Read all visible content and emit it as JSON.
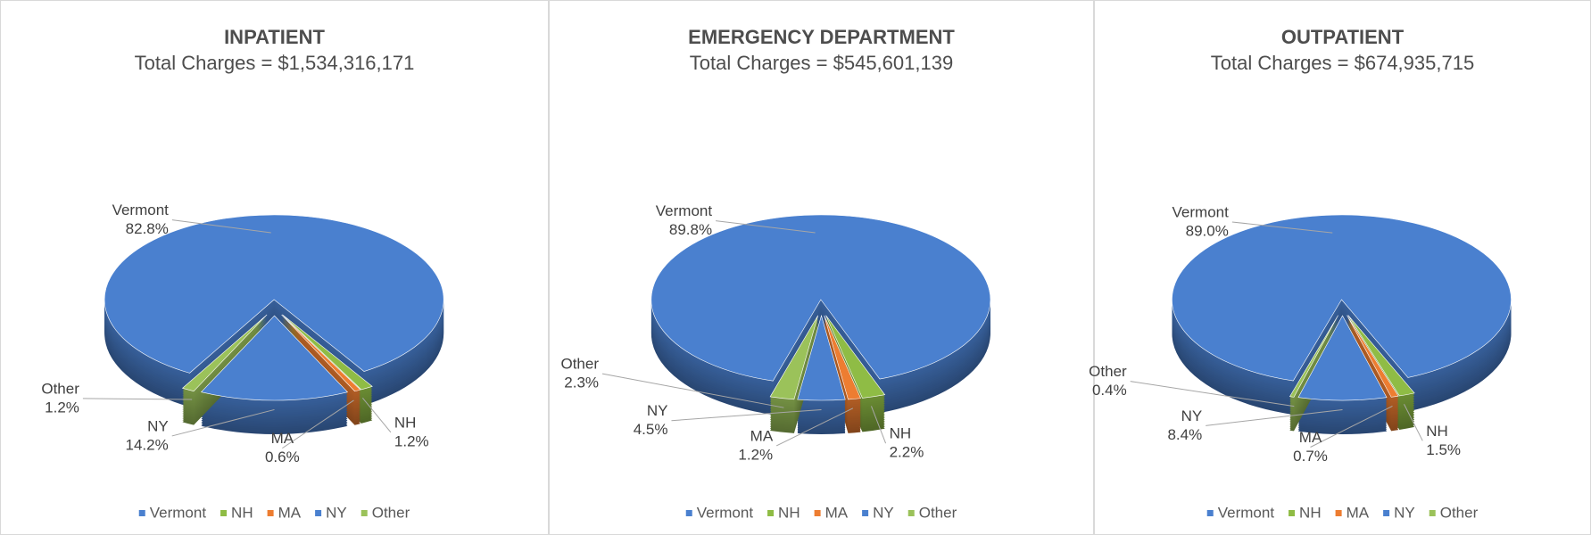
{
  "chart_data": [
    {
      "type": "pie",
      "title": "INPATIENT",
      "subtitle": "Total Charges = $1,534,316,171",
      "categories": [
        "Vermont",
        "NH",
        "MA",
        "NY",
        "Other"
      ],
      "values": [
        82.8,
        1.2,
        0.6,
        14.2,
        1.2
      ],
      "value_labels": [
        "82.8%",
        "1.2%",
        "0.6%",
        "14.2%",
        "1.2%"
      ],
      "colors": [
        "#4a80cf",
        "#8fbc45",
        "#ed7d31",
        "#4a80cf",
        "#9bc25a"
      ]
    },
    {
      "type": "pie",
      "title": "EMERGENCY DEPARTMENT",
      "subtitle": "Total Charges = $545,601,139",
      "categories": [
        "Vermont",
        "NH",
        "MA",
        "NY",
        "Other"
      ],
      "values": [
        89.8,
        2.2,
        1.2,
        4.5,
        2.3
      ],
      "value_labels": [
        "89.8%",
        "2.2%",
        "1.2%",
        "4.5%",
        "2.3%"
      ],
      "colors": [
        "#4a80cf",
        "#8fbc45",
        "#ed7d31",
        "#4a80cf",
        "#9bc25a"
      ]
    },
    {
      "type": "pie",
      "title": "OUTPATIENT",
      "subtitle": "Total Charges = $674,935,715",
      "categories": [
        "Vermont",
        "NH",
        "MA",
        "NY",
        "Other"
      ],
      "values": [
        89.0,
        1.5,
        0.7,
        8.4,
        0.4
      ],
      "value_labels": [
        "89.0%",
        "1.5%",
        "0.7%",
        "8.4%",
        "0.4%"
      ],
      "colors": [
        "#4a80cf",
        "#8fbc45",
        "#ed7d31",
        "#4a80cf",
        "#9bc25a"
      ]
    }
  ]
}
